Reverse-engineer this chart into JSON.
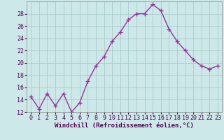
{
  "x": [
    0,
    1,
    2,
    3,
    4,
    5,
    6,
    7,
    8,
    9,
    10,
    11,
    12,
    13,
    14,
    15,
    16,
    17,
    18,
    19,
    20,
    21,
    22,
    23
  ],
  "y": [
    14.5,
    12.5,
    15.0,
    13.0,
    15.0,
    12.0,
    13.5,
    17.0,
    19.5,
    21.0,
    23.5,
    25.0,
    27.0,
    28.0,
    28.0,
    29.5,
    28.5,
    25.5,
    23.5,
    22.0,
    20.5,
    19.5,
    19.0,
    19.5
  ],
  "line_color": "#993399",
  "marker": "+",
  "marker_size": 4,
  "bg_color": "#cce8e8",
  "grid_color": "#aacccc",
  "xlabel": "Windchill (Refroidissement éolien,°C)",
  "xlabel_fontsize": 6.5,
  "tick_fontsize": 6,
  "ylim": [
    12,
    30
  ],
  "yticks": [
    12,
    14,
    16,
    18,
    20,
    22,
    24,
    26,
    28
  ],
  "xticks": [
    0,
    1,
    2,
    3,
    4,
    5,
    6,
    7,
    8,
    9,
    10,
    11,
    12,
    13,
    14,
    15,
    16,
    17,
    18,
    19,
    20,
    21,
    22,
    23
  ],
  "line_width": 1.0
}
